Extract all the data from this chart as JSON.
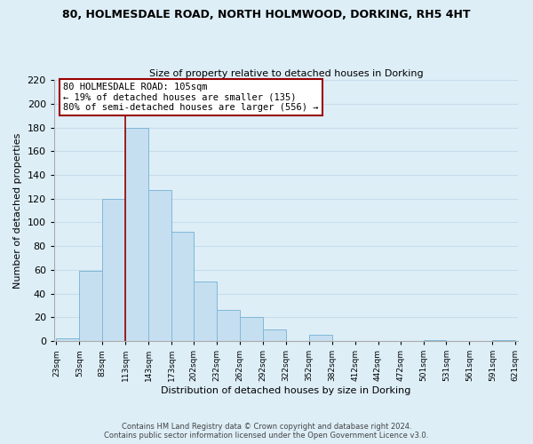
{
  "title_line1": "80, HOLMESDALE ROAD, NORTH HOLMWOOD, DORKING, RH5 4HT",
  "title_line2": "Size of property relative to detached houses in Dorking",
  "xlabel": "Distribution of detached houses by size in Dorking",
  "ylabel": "Number of detached properties",
  "bar_left_edges": [
    23,
    53,
    83,
    113,
    143,
    173,
    202,
    232,
    262,
    292,
    322,
    352,
    382,
    412,
    442,
    472,
    501,
    531,
    561,
    591
  ],
  "bar_widths": [
    30,
    30,
    30,
    30,
    30,
    29,
    30,
    30,
    30,
    30,
    30,
    30,
    30,
    30,
    30,
    29,
    30,
    30,
    30,
    30
  ],
  "bar_heights": [
    2,
    59,
    120,
    180,
    127,
    92,
    50,
    26,
    20,
    10,
    0,
    5,
    0,
    0,
    0,
    0,
    1,
    0,
    0,
    1
  ],
  "bar_color": "#c5dff0",
  "bar_edge_color": "#7fb8d8",
  "tick_labels": [
    "23sqm",
    "53sqm",
    "83sqm",
    "113sqm",
    "143sqm",
    "173sqm",
    "202sqm",
    "232sqm",
    "262sqm",
    "292sqm",
    "322sqm",
    "352sqm",
    "382sqm",
    "412sqm",
    "442sqm",
    "472sqm",
    "501sqm",
    "531sqm",
    "561sqm",
    "591sqm",
    "621sqm"
  ],
  "ylim": [
    0,
    220
  ],
  "yticks": [
    0,
    20,
    40,
    60,
    80,
    100,
    120,
    140,
    160,
    180,
    200,
    220
  ],
  "vline_x": 113,
  "vline_color": "#990000",
  "annotation_title": "80 HOLMESDALE ROAD: 105sqm",
  "annotation_line1": "← 19% of detached houses are smaller (135)",
  "annotation_line2": "80% of semi-detached houses are larger (556) →",
  "annotation_box_color": "#ffffff",
  "annotation_box_edge": "#990000",
  "grid_color": "#c8dcea",
  "background_color": "#ddeef7",
  "footer_line1": "Contains HM Land Registry data © Crown copyright and database right 2024.",
  "footer_line2": "Contains public sector information licensed under the Open Government Licence v3.0."
}
